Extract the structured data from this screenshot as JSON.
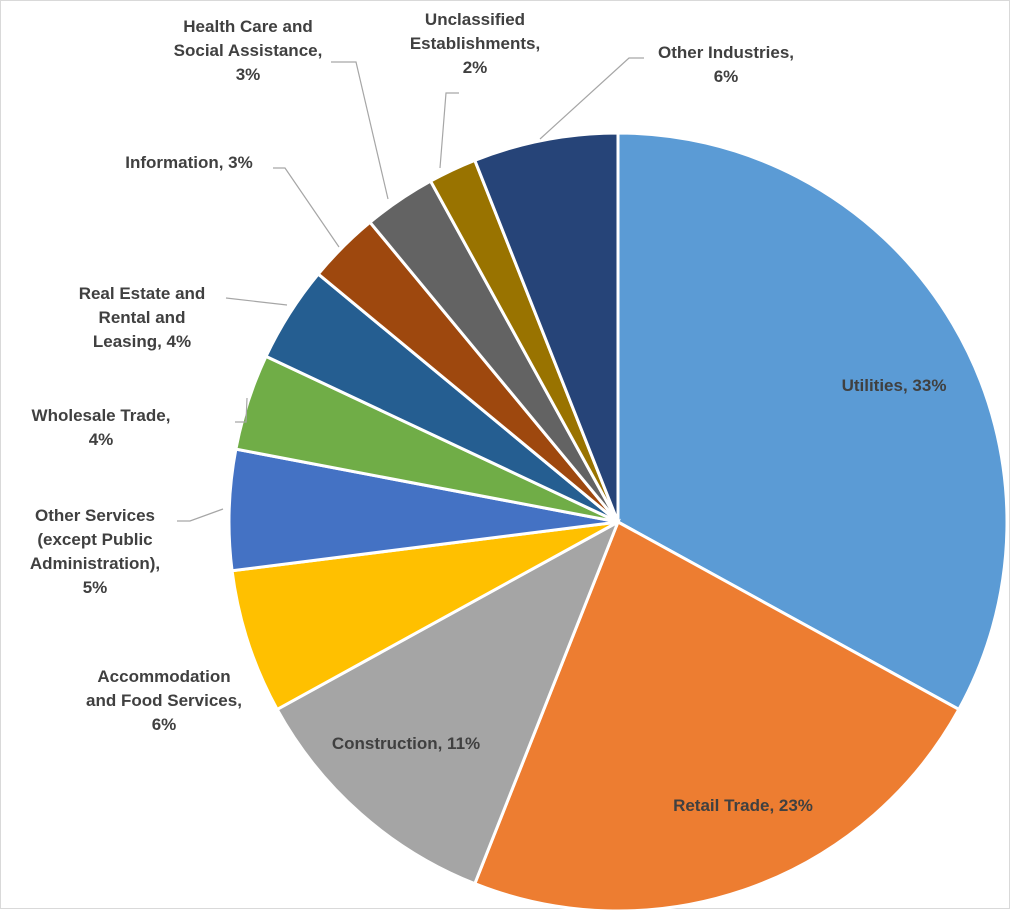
{
  "chart_data": {
    "type": "pie",
    "title": "",
    "start_angle_deg": 0,
    "direction": "clockwise",
    "slices": [
      {
        "label": "Utilities",
        "value": 33,
        "display": "33%",
        "color": "#5B9BD5"
      },
      {
        "label": "Retail Trade",
        "value": 23,
        "display": "23%",
        "color": "#ED7D31"
      },
      {
        "label": "Construction",
        "value": 11,
        "display": "11%",
        "color": "#A5A5A5"
      },
      {
        "label": "Accommodation and Food Services",
        "value": 6,
        "display": "6%",
        "color": "#FFC000"
      },
      {
        "label": "Other Services (except Public Administration)",
        "value": 5,
        "display": "5%",
        "color": "#4472C4"
      },
      {
        "label": "Wholesale Trade",
        "value": 4,
        "display": "4%",
        "color": "#70AD47"
      },
      {
        "label": "Real Estate and Rental and Leasing",
        "value": 4,
        "display": "4%",
        "color": "#255E91"
      },
      {
        "label": "Information",
        "value": 3,
        "display": "3%",
        "color": "#9E480E"
      },
      {
        "label": "Health Care and Social Assistance",
        "value": 3,
        "display": "3%",
        "color": "#636363"
      },
      {
        "label": "Unclassified Establishments",
        "value": 2,
        "display": "2%",
        "color": "#997300"
      },
      {
        "label": "Other Industries",
        "value": 6,
        "display": "6%",
        "color": "#264478"
      }
    ],
    "data_labels": [
      [
        "Utilities, 33%"
      ],
      [
        "Retail Trade, 23%"
      ],
      [
        "Construction, 11%"
      ],
      [
        "Accommodation",
        "and Food Services,",
        "6%"
      ],
      [
        "Other Services",
        "(except Public",
        "Administration),",
        "5%"
      ],
      [
        "Wholesale Trade,",
        "4%"
      ],
      [
        "Real Estate and",
        "Rental and",
        "Leasing, 4%"
      ],
      [
        "Information, 3%"
      ],
      [
        "Health Care and",
        "Social Assistance,",
        "3%"
      ],
      [
        "Unclassified",
        "Establishments,",
        "2%"
      ],
      [
        "Other Industries,",
        "6%"
      ]
    ]
  }
}
